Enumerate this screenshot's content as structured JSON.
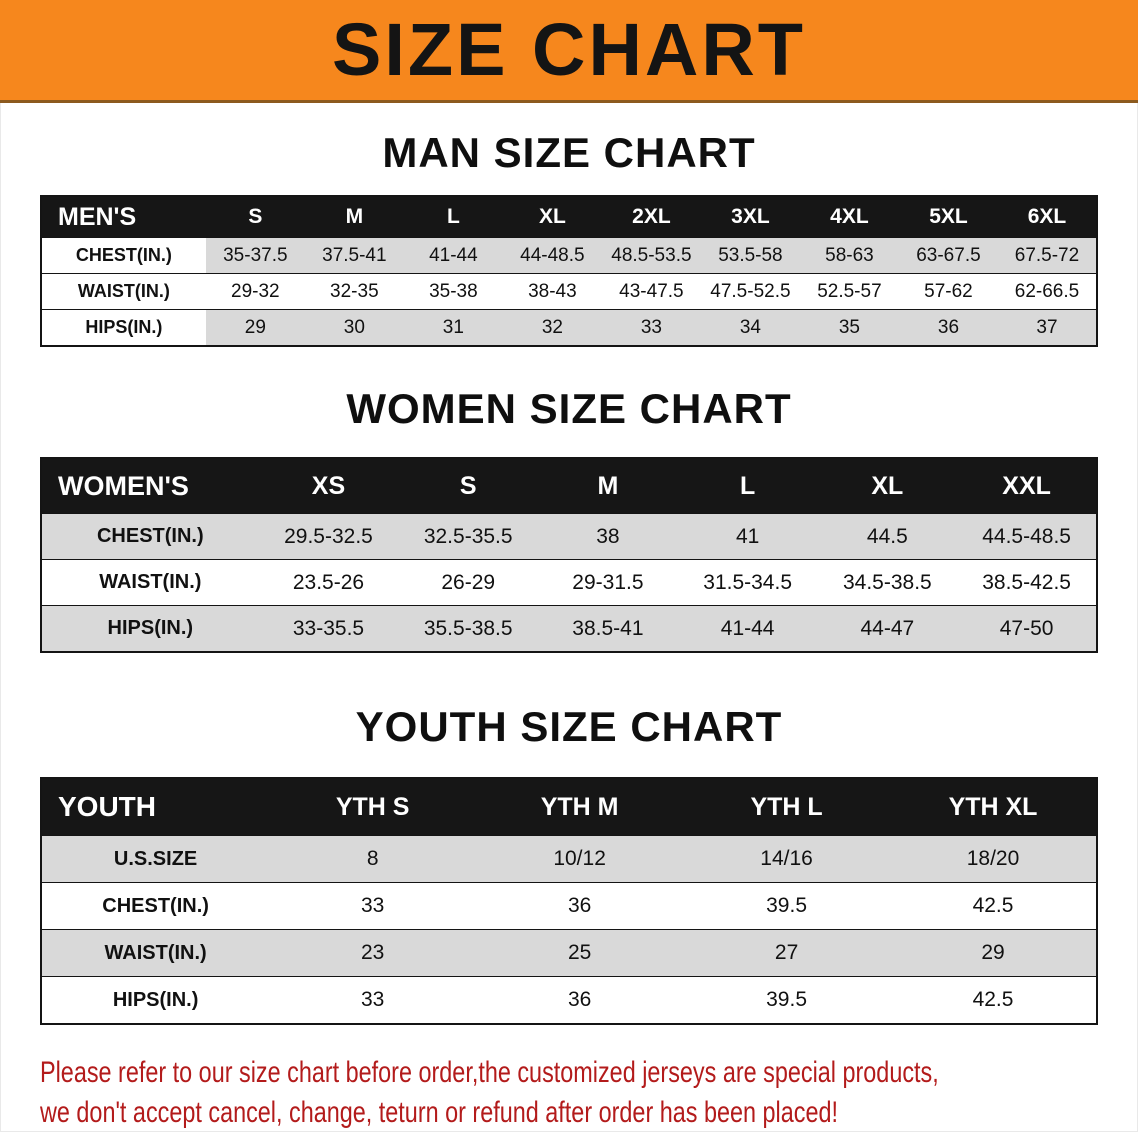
{
  "banner": {
    "title": "SIZE CHART"
  },
  "colors": {
    "banner_bg": "#f6871d",
    "header_bar": "#161616",
    "row_shade": "#d9d9d9",
    "footer_text": "#b31b1b"
  },
  "sections": [
    {
      "heading": "MAN SIZE CHART",
      "table": {
        "header": [
          "MEN'S",
          "S",
          "M",
          "L",
          "XL",
          "2XL",
          "3XL",
          "4XL",
          "5XL",
          "6XL"
        ],
        "rows": [
          {
            "label": "CHEST(IN.)",
            "cells": [
              "35-37.5",
              "37.5-41",
              "41-44",
              "44-48.5",
              "48.5-53.5",
              "53.5-58",
              "58-63",
              "63-67.5",
              "67.5-72"
            ]
          },
          {
            "label": "WAIST(IN.)",
            "cells": [
              "29-32",
              "32-35",
              "35-38",
              "38-43",
              "43-47.5",
              "47.5-52.5",
              "52.5-57",
              "57-62",
              "62-66.5"
            ]
          },
          {
            "label": "HIPS(IN.)",
            "cells": [
              "29",
              "30",
              "31",
              "32",
              "33",
              "34",
              "35",
              "36",
              "37"
            ]
          }
        ]
      }
    },
    {
      "heading": "WOMEN SIZE CHART",
      "table": {
        "header": [
          "WOMEN'S",
          "XS",
          "S",
          "M",
          "L",
          "XL",
          "XXL"
        ],
        "rows": [
          {
            "label": "CHEST(IN.)",
            "cells": [
              "29.5-32.5",
              "32.5-35.5",
              "38",
              "41",
              "44.5",
              "44.5-48.5"
            ]
          },
          {
            "label": "WAIST(IN.)",
            "cells": [
              "23.5-26",
              "26-29",
              "29-31.5",
              "31.5-34.5",
              "34.5-38.5",
              "38.5-42.5"
            ]
          },
          {
            "label": "HIPS(IN.)",
            "cells": [
              "33-35.5",
              "35.5-38.5",
              "38.5-41",
              "41-44",
              "44-47",
              "47-50"
            ]
          }
        ]
      }
    },
    {
      "heading": "YOUTH SIZE CHART",
      "table": {
        "header": [
          "YOUTH",
          "YTH S",
          "YTH M",
          "YTH L",
          "YTH XL"
        ],
        "rows": [
          {
            "label": "U.S.SIZE",
            "cells": [
              "8",
              "10/12",
              "14/16",
              "18/20"
            ]
          },
          {
            "label": "CHEST(IN.)",
            "cells": [
              "33",
              "36",
              "39.5",
              "42.5"
            ]
          },
          {
            "label": "WAIST(IN.)",
            "cells": [
              "23",
              "25",
              "27",
              "29"
            ]
          },
          {
            "label": "HIPS(IN.)",
            "cells": [
              "33",
              "36",
              "39.5",
              "42.5"
            ]
          }
        ]
      }
    }
  ],
  "footer": {
    "line1": "Please refer to our size chart before order,the customized jerseys are special products,",
    "line2": "we don't accept cancel, change, teturn or refund after order has been placed!"
  }
}
